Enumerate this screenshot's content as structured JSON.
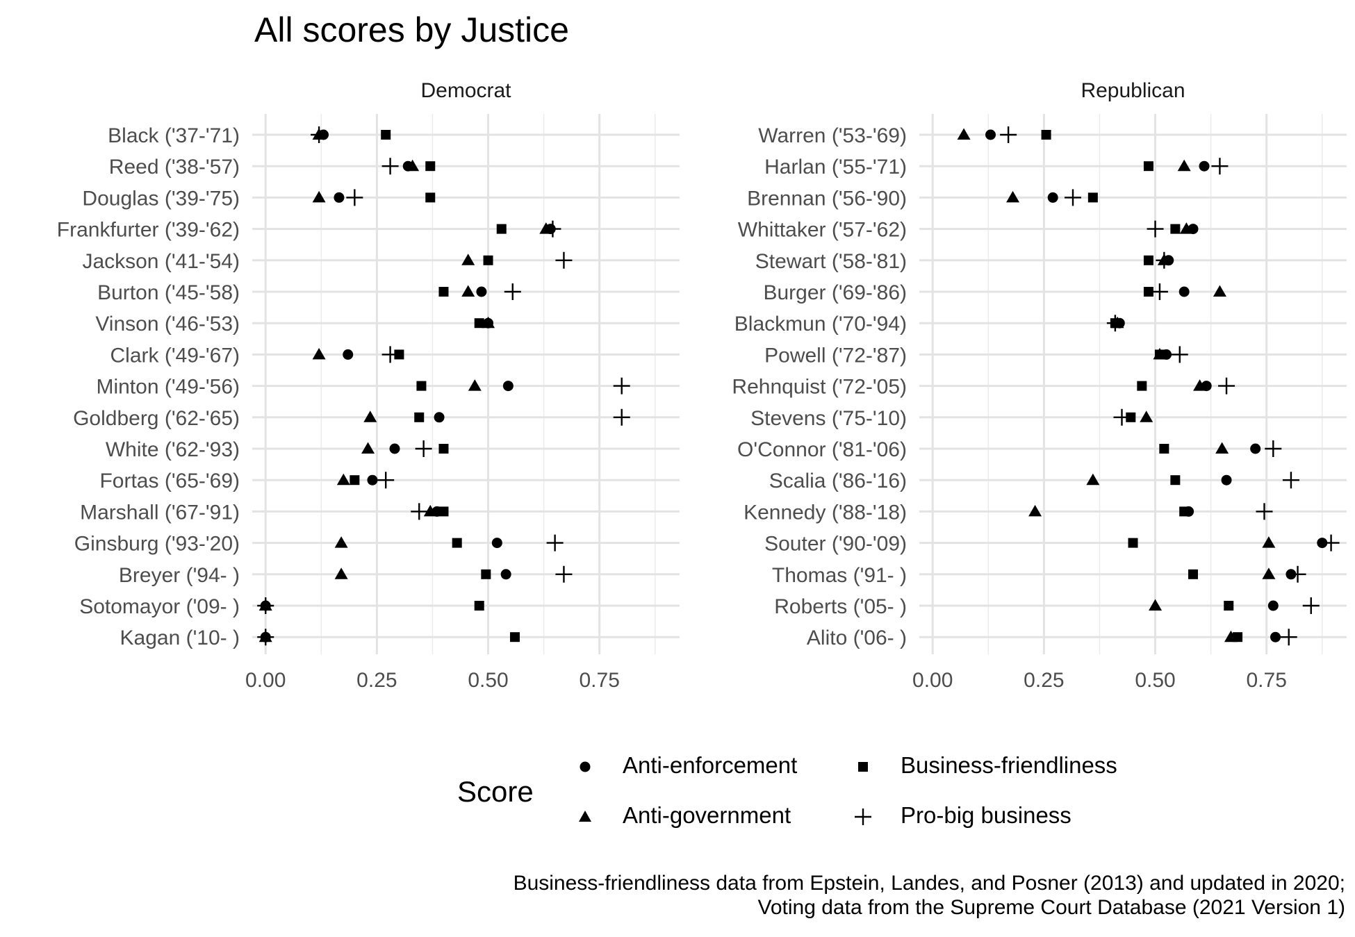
{
  "title": "All scores by Justice",
  "legend": {
    "title": "Score",
    "items": [
      {
        "label": "Anti-enforcement",
        "shape": "circle"
      },
      {
        "label": "Business-friendliness",
        "shape": "square"
      },
      {
        "label": "Anti-government",
        "shape": "triangle"
      },
      {
        "label": "Pro-big business",
        "shape": "plus"
      }
    ]
  },
  "caption": {
    "line1": "Business-friendliness data from Epstein, Landes, and Posner (2013) and updated in 2020;",
    "line2": "Voting data from the Supreme Court Database (2021 Version 1)"
  },
  "chart_data": {
    "type": "scatter",
    "title": "All scores by Justice",
    "xlim": [
      -0.03,
      0.93
    ],
    "x_ticks": [
      "0.00",
      "0.25",
      "0.50",
      "0.75"
    ],
    "x_tick_values": [
      0,
      0.25,
      0.5,
      0.75
    ],
    "grid": true,
    "legend_position": "bottom",
    "series_names": [
      "Anti-enforcement",
      "Anti-government",
      "Business-friendliness",
      "Pro-big business"
    ],
    "facets": [
      {
        "name": "Democrat",
        "justices": [
          {
            "name": "Black ('37-'71)",
            "anti_enforcement": 0.13,
            "anti_government": 0.12,
            "business_friendliness": 0.27,
            "pro_big_business": 0.12
          },
          {
            "name": "Reed ('38-'57)",
            "anti_enforcement": 0.32,
            "anti_government": 0.33,
            "business_friendliness": 0.37,
            "pro_big_business": 0.28
          },
          {
            "name": "Douglas ('39-'75)",
            "anti_enforcement": 0.165,
            "anti_government": 0.12,
            "business_friendliness": 0.37,
            "pro_big_business": 0.2
          },
          {
            "name": "Frankfurter ('39-'62)",
            "anti_enforcement": 0.64,
            "anti_government": 0.63,
            "business_friendliness": 0.53,
            "pro_big_business": 0.645
          },
          {
            "name": "Jackson ('41-'54)",
            "anti_enforcement": null,
            "anti_government": 0.455,
            "business_friendliness": 0.5,
            "pro_big_business": 0.67
          },
          {
            "name": "Burton ('45-'58)",
            "anti_enforcement": 0.485,
            "anti_government": 0.455,
            "business_friendliness": 0.4,
            "pro_big_business": 0.555
          },
          {
            "name": "Vinson ('46-'53)",
            "anti_enforcement": 0.5,
            "anti_government": 0.5,
            "business_friendliness": 0.48,
            "pro_big_business": null
          },
          {
            "name": "Clark ('49-'67)",
            "anti_enforcement": 0.185,
            "anti_government": 0.12,
            "business_friendliness": 0.3,
            "pro_big_business": 0.28
          },
          {
            "name": "Minton ('49-'56)",
            "anti_enforcement": 0.545,
            "anti_government": 0.47,
            "business_friendliness": 0.35,
            "pro_big_business": 0.8
          },
          {
            "name": "Goldberg ('62-'65)",
            "anti_enforcement": 0.39,
            "anti_government": 0.235,
            "business_friendliness": 0.345,
            "pro_big_business": 0.8
          },
          {
            "name": "White ('62-'93)",
            "anti_enforcement": 0.29,
            "anti_government": 0.23,
            "business_friendliness": 0.4,
            "pro_big_business": 0.355
          },
          {
            "name": "Fortas ('65-'69)",
            "anti_enforcement": 0.24,
            "anti_government": 0.175,
            "business_friendliness": 0.2,
            "pro_big_business": 0.27
          },
          {
            "name": "Marshall ('67-'91)",
            "anti_enforcement": 0.385,
            "anti_government": 0.37,
            "business_friendliness": 0.4,
            "pro_big_business": 0.345
          },
          {
            "name": "Ginsburg ('93-'20)",
            "anti_enforcement": 0.52,
            "anti_government": 0.17,
            "business_friendliness": 0.43,
            "pro_big_business": 0.65
          },
          {
            "name": "Breyer ('94- )",
            "anti_enforcement": 0.54,
            "anti_government": 0.17,
            "business_friendliness": 0.495,
            "pro_big_business": 0.67
          },
          {
            "name": "Sotomayor ('09- )",
            "anti_enforcement": 0.0,
            "anti_government": 0.0,
            "business_friendliness": 0.48,
            "pro_big_business": 0.0
          },
          {
            "name": "Kagan ('10- )",
            "anti_enforcement": 0.0,
            "anti_government": 0.0,
            "business_friendliness": 0.56,
            "pro_big_business": 0.0
          }
        ]
      },
      {
        "name": "Republican",
        "justices": [
          {
            "name": "Warren ('53-'69)",
            "anti_enforcement": 0.13,
            "anti_government": 0.07,
            "business_friendliness": 0.255,
            "pro_big_business": 0.17
          },
          {
            "name": "Harlan ('55-'71)",
            "anti_enforcement": 0.61,
            "anti_government": 0.565,
            "business_friendliness": 0.485,
            "pro_big_business": 0.645
          },
          {
            "name": "Brennan ('56-'90)",
            "anti_enforcement": 0.27,
            "anti_government": 0.18,
            "business_friendliness": 0.36,
            "pro_big_business": 0.315
          },
          {
            "name": "Whittaker ('57-'62)",
            "anti_enforcement": 0.585,
            "anti_government": 0.57,
            "business_friendliness": 0.545,
            "pro_big_business": 0.5
          },
          {
            "name": "Stewart ('58-'81)",
            "anti_enforcement": 0.53,
            "anti_government": 0.52,
            "business_friendliness": 0.485,
            "pro_big_business": 0.52
          },
          {
            "name": "Burger ('69-'86)",
            "anti_enforcement": 0.565,
            "anti_government": 0.645,
            "business_friendliness": 0.485,
            "pro_big_business": 0.51
          },
          {
            "name": "Blackmun ('70-'94)",
            "anti_enforcement": 0.42,
            "anti_government": 0.415,
            "business_friendliness": 0.41,
            "pro_big_business": 0.41
          },
          {
            "name": "Powell ('72-'87)",
            "anti_enforcement": 0.525,
            "anti_government": 0.51,
            "business_friendliness": 0.51,
            "pro_big_business": 0.555
          },
          {
            "name": "Rehnquist ('72-'05)",
            "anti_enforcement": 0.615,
            "anti_government": 0.6,
            "business_friendliness": 0.47,
            "pro_big_business": 0.66
          },
          {
            "name": "Stevens ('75-'10)",
            "anti_enforcement": null,
            "anti_government": 0.48,
            "business_friendliness": 0.445,
            "pro_big_business": 0.425
          },
          {
            "name": "O'Connor ('81-'06)",
            "anti_enforcement": 0.725,
            "anti_government": 0.65,
            "business_friendliness": 0.52,
            "pro_big_business": 0.765
          },
          {
            "name": "Scalia ('86-'16)",
            "anti_enforcement": 0.66,
            "anti_government": 0.36,
            "business_friendliness": 0.545,
            "pro_big_business": 0.805
          },
          {
            "name": "Kennedy ('88-'18)",
            "anti_enforcement": 0.575,
            "anti_government": 0.23,
            "business_friendliness": 0.565,
            "pro_big_business": 0.745
          },
          {
            "name": "Souter ('90-'09)",
            "anti_enforcement": 0.875,
            "anti_government": 0.755,
            "business_friendliness": 0.45,
            "pro_big_business": 0.895
          },
          {
            "name": "Thomas ('91- )",
            "anti_enforcement": 0.805,
            "anti_government": 0.755,
            "business_friendliness": 0.585,
            "pro_big_business": 0.82
          },
          {
            "name": "Roberts ('05- )",
            "anti_enforcement": 0.765,
            "anti_government": 0.5,
            "business_friendliness": 0.665,
            "pro_big_business": 0.85
          },
          {
            "name": "Alito ('06- )",
            "anti_enforcement": 0.77,
            "anti_government": 0.67,
            "business_friendliness": 0.685,
            "pro_big_business": 0.8
          }
        ]
      }
    ]
  }
}
